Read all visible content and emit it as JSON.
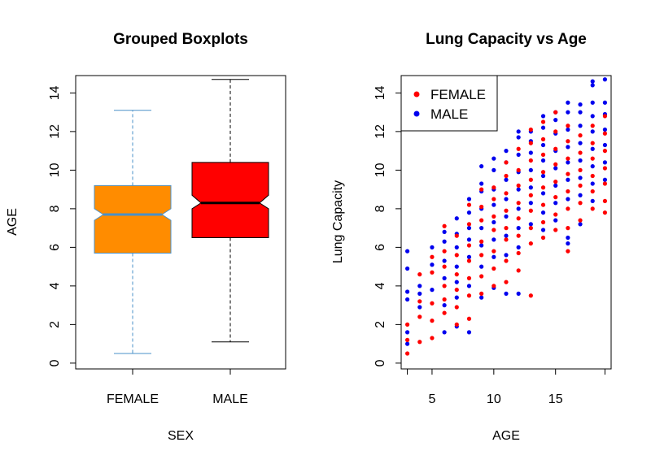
{
  "chart_data": [
    {
      "type": "boxplot",
      "title": "Grouped Boxplots",
      "xlabel": "SEX",
      "ylabel": "AGE",
      "ylim": [
        -0.3,
        14.9
      ],
      "yticks": [
        "0",
        "2",
        "4",
        "6",
        "8",
        "10",
        "12",
        "14"
      ],
      "notched": true,
      "groups": [
        {
          "name": "FEMALE",
          "min": 0.5,
          "q1": 5.7,
          "median": 7.7,
          "q3": 9.2,
          "max": 13.1,
          "notch_low": 7.4,
          "notch_high": 8.0,
          "fill": "#ff8c00",
          "border": "#4a90c8"
        },
        {
          "name": "MALE",
          "min": 1.1,
          "q1": 6.5,
          "median": 8.3,
          "q3": 10.4,
          "max": 14.7,
          "notch_low": 8.0,
          "notch_high": 8.7,
          "fill": "#ff0000",
          "border": "#000000"
        }
      ]
    },
    {
      "type": "scatter",
      "title": "Lung Capacity vs Age",
      "xlabel": "AGE",
      "ylabel": "Lung Capacity",
      "xlim": [
        2.5,
        19.5
      ],
      "ylim": [
        -0.3,
        14.9
      ],
      "xticks": [
        "5",
        "10",
        "15"
      ],
      "yticks": [
        "0",
        "2",
        "4",
        "6",
        "8",
        "10",
        "12",
        "14"
      ],
      "legend_position": "top-left",
      "series": [
        {
          "name": "FEMALE",
          "color": "#ff0000",
          "points": [
            [
              3,
              0.5
            ],
            [
              3,
              1.2
            ],
            [
              3,
              2.0
            ],
            [
              4,
              1.1
            ],
            [
              4,
              2.4
            ],
            [
              4,
              3.2
            ],
            [
              4,
              4.6
            ],
            [
              5,
              1.3
            ],
            [
              5,
              2.2
            ],
            [
              5,
              3.1
            ],
            [
              5,
              4.7
            ],
            [
              5,
              5.5
            ],
            [
              6,
              2.6
            ],
            [
              6,
              3.3
            ],
            [
              6,
              4.0
            ],
            [
              6,
              5.0
            ],
            [
              6,
              5.8
            ],
            [
              6,
              7.1
            ],
            [
              7,
              2.0
            ],
            [
              7,
              2.9
            ],
            [
              7,
              3.8
            ],
            [
              7,
              4.6
            ],
            [
              7,
              5.6
            ],
            [
              7,
              6.6
            ],
            [
              8,
              2.3
            ],
            [
              8,
              3.5
            ],
            [
              8,
              4.4
            ],
            [
              8,
              5.3
            ],
            [
              8,
              6.1
            ],
            [
              8,
              7.2
            ],
            [
              8,
              8.2
            ],
            [
              9,
              3.6
            ],
            [
              9,
              4.5
            ],
            [
              9,
              5.6
            ],
            [
              9,
              6.3
            ],
            [
              9,
              7.4
            ],
            [
              9,
              8.1
            ],
            [
              9,
              9.0
            ],
            [
              10,
              4.0
            ],
            [
              10,
              4.9
            ],
            [
              10,
              5.8
            ],
            [
              10,
              6.9
            ],
            [
              10,
              7.6
            ],
            [
              10,
              8.5
            ],
            [
              10,
              9.1
            ],
            [
              11,
              4.2
            ],
            [
              11,
              5.3
            ],
            [
              11,
              6.4
            ],
            [
              11,
              7.0
            ],
            [
              11,
              7.9
            ],
            [
              11,
              8.8
            ],
            [
              11,
              9.7
            ],
            [
              11,
              10.4
            ],
            [
              12,
              4.8
            ],
            [
              12,
              5.7
            ],
            [
              12,
              6.6
            ],
            [
              12,
              7.5
            ],
            [
              12,
              8.3
            ],
            [
              12,
              9.2
            ],
            [
              12,
              10.0
            ],
            [
              12,
              11.1
            ],
            [
              13,
              3.5
            ],
            [
              13,
              6.2
            ],
            [
              13,
              7.0
            ],
            [
              13,
              7.9
            ],
            [
              13,
              8.7
            ],
            [
              13,
              9.5
            ],
            [
              13,
              10.5
            ],
            [
              13,
              11.4
            ],
            [
              13,
              12.1
            ],
            [
              14,
              6.5
            ],
            [
              14,
              7.3
            ],
            [
              14,
              8.2
            ],
            [
              14,
              9.1
            ],
            [
              14,
              9.9
            ],
            [
              14,
              10.8
            ],
            [
              14,
              11.6
            ],
            [
              14,
              12.5
            ],
            [
              15,
              6.9
            ],
            [
              15,
              7.7
            ],
            [
              15,
              8.6
            ],
            [
              15,
              9.4
            ],
            [
              15,
              10.3
            ],
            [
              15,
              11.1
            ],
            [
              15,
              12.0
            ],
            [
              15,
              13.0
            ],
            [
              16,
              5.8
            ],
            [
              16,
              7.0
            ],
            [
              16,
              8.0
            ],
            [
              16,
              8.9
            ],
            [
              16,
              9.8
            ],
            [
              16,
              10.6
            ],
            [
              16,
              11.5
            ],
            [
              16,
              12.3
            ],
            [
              17,
              7.4
            ],
            [
              17,
              8.3
            ],
            [
              17,
              9.2
            ],
            [
              17,
              10.0
            ],
            [
              17,
              10.9
            ],
            [
              17,
              11.8
            ],
            [
              18,
              8.0
            ],
            [
              18,
              8.9
            ],
            [
              18,
              9.7
            ],
            [
              18,
              10.6
            ],
            [
              18,
              11.4
            ],
            [
              18,
              12.3
            ],
            [
              19,
              7.8
            ],
            [
              19,
              8.4
            ],
            [
              19,
              9.3
            ],
            [
              19,
              10.1
            ],
            [
              19,
              11.0
            ],
            [
              19,
              11.9
            ],
            [
              19,
              12.8
            ]
          ]
        },
        {
          "name": "MALE",
          "color": "#0000ee",
          "points": [
            [
              3,
              1.0
            ],
            [
              3,
              1.6
            ],
            [
              3,
              3.3
            ],
            [
              3,
              3.7
            ],
            [
              3,
              4.9
            ],
            [
              3,
              5.8
            ],
            [
              4,
              2.9
            ],
            [
              4,
              3.6
            ],
            [
              4,
              4.0
            ],
            [
              5,
              3.8
            ],
            [
              5,
              5.1
            ],
            [
              5,
              6.0
            ],
            [
              6,
              1.6
            ],
            [
              6,
              3.0
            ],
            [
              6,
              4.4
            ],
            [
              6,
              5.3
            ],
            [
              6,
              6.3
            ],
            [
              6,
              6.8
            ],
            [
              7,
              1.9
            ],
            [
              7,
              3.4
            ],
            [
              7,
              4.2
            ],
            [
              7,
              5.0
            ],
            [
              7,
              6.0
            ],
            [
              7,
              6.7
            ],
            [
              7,
              7.5
            ],
            [
              8,
              1.6
            ],
            [
              8,
              4.0
            ],
            [
              8,
              5.5
            ],
            [
              8,
              6.4
            ],
            [
              8,
              7.0
            ],
            [
              8,
              7.8
            ],
            [
              8,
              8.5
            ],
            [
              9,
              3.4
            ],
            [
              9,
              5.0
            ],
            [
              9,
              6.1
            ],
            [
              9,
              7.0
            ],
            [
              9,
              8.0
            ],
            [
              9,
              8.9
            ],
            [
              9,
              9.3
            ],
            [
              9,
              10.2
            ],
            [
              10,
              3.9
            ],
            [
              10,
              5.5
            ],
            [
              10,
              6.4
            ],
            [
              10,
              7.3
            ],
            [
              10,
              8.2
            ],
            [
              10,
              9.0
            ],
            [
              10,
              10.0
            ],
            [
              10,
              10.6
            ],
            [
              11,
              3.6
            ],
            [
              11,
              5.6
            ],
            [
              11,
              6.6
            ],
            [
              11,
              7.6
            ],
            [
              11,
              8.5
            ],
            [
              11,
              9.5
            ],
            [
              11,
              10.4
            ],
            [
              11,
              11.0
            ],
            [
              12,
              3.6
            ],
            [
              12,
              6.0
            ],
            [
              12,
              7.0
            ],
            [
              12,
              8.0
            ],
            [
              12,
              9.0
            ],
            [
              12,
              9.9
            ],
            [
              12,
              10.8
            ],
            [
              12,
              11.7
            ],
            [
              12,
              12.0
            ],
            [
              13,
              7.2
            ],
            [
              13,
              8.3
            ],
            [
              13,
              9.1
            ],
            [
              13,
              10.0
            ],
            [
              13,
              10.9
            ],
            [
              13,
              11.5
            ],
            [
              13,
              12.0
            ],
            [
              14,
              6.9
            ],
            [
              14,
              7.8
            ],
            [
              14,
              8.8
            ],
            [
              14,
              9.7
            ],
            [
              14,
              10.5
            ],
            [
              14,
              11.3
            ],
            [
              14,
              12.2
            ],
            [
              14,
              12.8
            ],
            [
              15,
              7.4
            ],
            [
              15,
              8.3
            ],
            [
              15,
              9.2
            ],
            [
              15,
              10.1
            ],
            [
              15,
              11.0
            ],
            [
              15,
              11.9
            ],
            [
              15,
              12.6
            ],
            [
              15,
              13.0
            ],
            [
              16,
              6.2
            ],
            [
              16,
              6.5
            ],
            [
              16,
              8.5
            ],
            [
              16,
              9.5
            ],
            [
              16,
              10.4
            ],
            [
              16,
              11.2
            ],
            [
              16,
              12.1
            ],
            [
              16,
              13.0
            ],
            [
              16,
              13.5
            ],
            [
              17,
              7.2
            ],
            [
              17,
              8.7
            ],
            [
              17,
              9.6
            ],
            [
              17,
              10.5
            ],
            [
              17,
              11.4
            ],
            [
              17,
              12.3
            ],
            [
              17,
              13.0
            ],
            [
              17,
              13.4
            ],
            [
              18,
              8.4
            ],
            [
              18,
              9.3
            ],
            [
              18,
              10.2
            ],
            [
              18,
              11.1
            ],
            [
              18,
              12.0
            ],
            [
              18,
              12.8
            ],
            [
              18,
              13.5
            ],
            [
              18,
              14.4
            ],
            [
              18,
              14.6
            ],
            [
              19,
              9.5
            ],
            [
              19,
              10.4
            ],
            [
              19,
              11.3
            ],
            [
              19,
              12.1
            ],
            [
              19,
              12.9
            ],
            [
              19,
              13.5
            ],
            [
              19,
              14.7
            ]
          ]
        }
      ]
    }
  ]
}
